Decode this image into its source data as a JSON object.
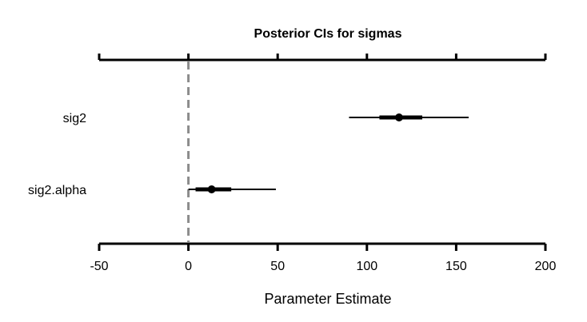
{
  "chart_data": {
    "type": "interval",
    "title": "Posterior CIs for sigmas",
    "xlabel": "Parameter Estimate",
    "ylabel": "",
    "xlim": [
      -50,
      200
    ],
    "xticks": [
      -50,
      0,
      50,
      100,
      150,
      200
    ],
    "xtick_labels": [
      "-50",
      "0",
      "50",
      "100",
      "150",
      "200"
    ],
    "reference_line": 0,
    "grid": false,
    "series": [
      {
        "label": "sig2",
        "estimate": 118,
        "inner": [
          107,
          131
        ],
        "outer": [
          90,
          157
        ]
      },
      {
        "label": "sig2.alpha",
        "estimate": 13,
        "inner": [
          4,
          24
        ],
        "outer": [
          0,
          49
        ]
      }
    ]
  }
}
